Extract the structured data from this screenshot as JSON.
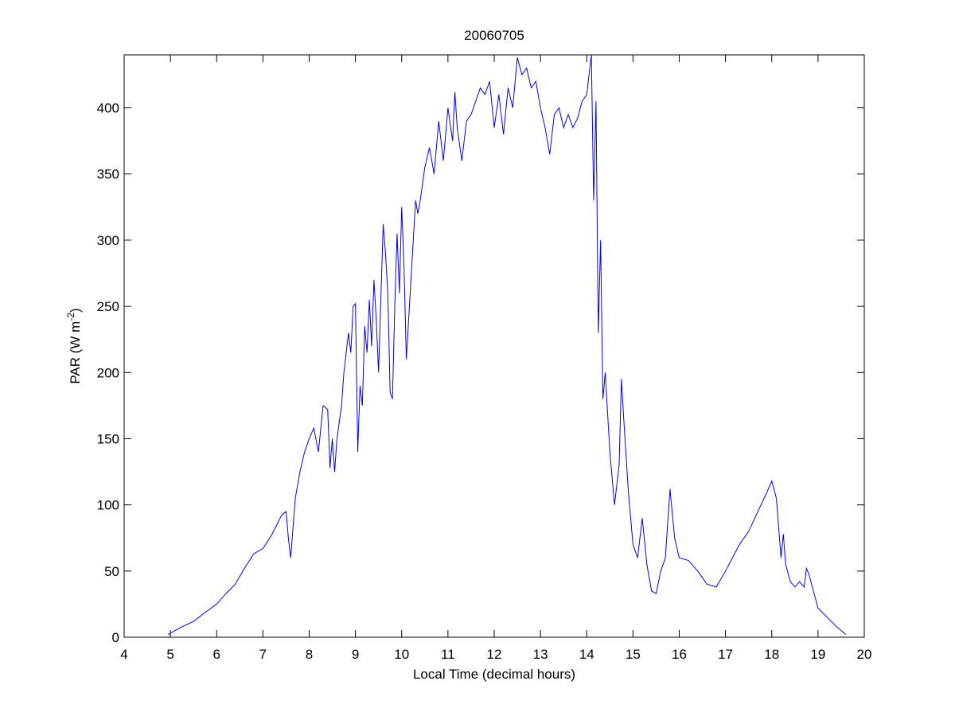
{
  "chart_data": {
    "type": "line",
    "title": "20060705",
    "xlabel": "Local Time (decimal hours)",
    "ylabel": {
      "text": "PAR (W m",
      "superscript": "-2",
      "suffix": ")"
    },
    "xlim": [
      4,
      20
    ],
    "ylim": [
      0,
      440
    ],
    "xticks": [
      4,
      5,
      6,
      7,
      8,
      9,
      10,
      11,
      12,
      13,
      14,
      15,
      16,
      17,
      18,
      19,
      20
    ],
    "yticks": [
      0,
      50,
      100,
      150,
      200,
      250,
      300,
      350,
      400
    ],
    "series": [
      {
        "color": "#0000ff",
        "x": [
          4.95,
          5.2,
          5.5,
          5.8,
          6.0,
          6.2,
          6.4,
          6.6,
          6.8,
          7.0,
          7.2,
          7.3,
          7.4,
          7.5,
          7.55,
          7.6,
          7.7,
          7.8,
          7.9,
          8.0,
          8.1,
          8.2,
          8.3,
          8.4,
          8.45,
          8.5,
          8.55,
          8.6,
          8.7,
          8.75,
          8.85,
          8.9,
          8.95,
          9.0,
          9.05,
          9.1,
          9.15,
          9.2,
          9.25,
          9.3,
          9.35,
          9.4,
          9.45,
          9.5,
          9.6,
          9.65,
          9.7,
          9.75,
          9.8,
          9.85,
          9.9,
          9.95,
          10.0,
          10.05,
          10.1,
          10.15,
          10.2,
          10.25,
          10.3,
          10.35,
          10.4,
          10.5,
          10.6,
          10.7,
          10.8,
          10.9,
          11.0,
          11.1,
          11.15,
          11.2,
          11.3,
          11.4,
          11.5,
          11.6,
          11.7,
          11.8,
          11.9,
          12.0,
          12.1,
          12.2,
          12.3,
          12.4,
          12.5,
          12.6,
          12.7,
          12.8,
          12.9,
          13.0,
          13.1,
          13.2,
          13.3,
          13.4,
          13.5,
          13.6,
          13.7,
          13.8,
          13.9,
          14.0,
          14.1,
          14.15,
          14.2,
          14.25,
          14.3,
          14.35,
          14.4,
          14.5,
          14.6,
          14.7,
          14.75,
          14.8,
          14.9,
          15.0,
          15.1,
          15.2,
          15.3,
          15.4,
          15.5,
          15.6,
          15.7,
          15.8,
          15.9,
          16.0,
          16.2,
          16.4,
          16.6,
          16.8,
          17.0,
          17.3,
          17.5,
          17.7,
          17.9,
          18.0,
          18.1,
          18.2,
          18.25,
          18.3,
          18.4,
          18.5,
          18.6,
          18.7,
          18.75,
          18.8,
          18.9,
          19.0,
          19.2,
          19.4,
          19.6
        ],
        "values": [
          2,
          7,
          12,
          20,
          25,
          33,
          40,
          52,
          63,
          67,
          78,
          85,
          92,
          95,
          75,
          60,
          105,
          125,
          140,
          150,
          158,
          140,
          175,
          172,
          128,
          150,
          125,
          150,
          175,
          200,
          230,
          215,
          250,
          252,
          140,
          190,
          175,
          235,
          215,
          255,
          220,
          270,
          240,
          200,
          312,
          290,
          260,
          185,
          180,
          250,
          305,
          260,
          325,
          280,
          210,
          240,
          270,
          300,
          330,
          320,
          330,
          355,
          370,
          350,
          390,
          360,
          400,
          375,
          412,
          385,
          360,
          390,
          395,
          405,
          415,
          410,
          420,
          385,
          410,
          380,
          415,
          400,
          438,
          425,
          430,
          415,
          420,
          400,
          385,
          365,
          395,
          400,
          385,
          395,
          385,
          392,
          405,
          410,
          440,
          330,
          405,
          230,
          300,
          180,
          200,
          140,
          100,
          130,
          195,
          165,
          110,
          70,
          60,
          90,
          55,
          35,
          33,
          50,
          60,
          112,
          75,
          60,
          58,
          50,
          40,
          38,
          50,
          70,
          80,
          95,
          110,
          118,
          105,
          60,
          78,
          55,
          42,
          38,
          42,
          38,
          52,
          48,
          35,
          22,
          15,
          8,
          2
        ]
      }
    ]
  }
}
